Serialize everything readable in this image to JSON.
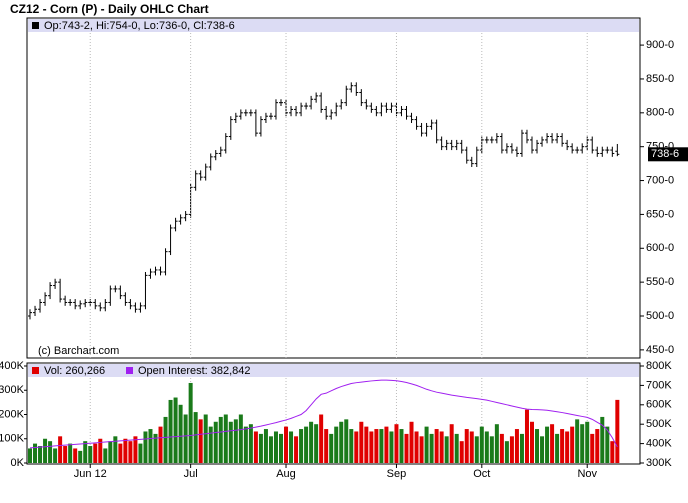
{
  "chart_data": [
    {
      "type": "ohlc",
      "title": "CZ12 - Corn (P) - Daily OHLC Chart",
      "legend_label": "Op:743-2, Hi:754-0, Lo:736-0, Cl:738-6",
      "last_price_label": "738-6",
      "annotation": "(c) Barchart.com",
      "color": "#000000",
      "open": [
        500,
        505,
        510,
        520,
        530,
        545,
        550,
        525,
        520,
        520,
        515,
        518,
        520,
        520,
        515,
        512,
        520,
        540,
        540,
        530,
        520,
        515,
        510,
        515,
        560,
        565,
        568,
        565,
        595,
        630,
        640,
        645,
        650,
        690,
        710,
        705,
        720,
        735,
        740,
        745,
        765,
        790,
        795,
        800,
        800,
        800,
        770,
        790,
        795,
        795,
        815,
        815,
        800,
        805,
        800,
        810,
        810,
        820,
        825,
        805,
        795,
        800,
        810,
        815,
        835,
        840,
        830,
        815,
        810,
        805,
        800,
        810,
        805,
        810,
        800,
        805,
        795,
        790,
        780,
        770,
        780,
        785,
        760,
        750,
        755,
        750,
        755,
        745,
        730,
        725,
        745,
        760,
        760,
        760,
        765,
        745,
        750,
        745,
        740,
        770,
        760,
        745,
        755,
        760,
        765,
        760,
        765,
        755,
        750,
        745,
        745,
        750,
        760,
        745,
        740,
        745,
        745,
        743.25
      ],
      "high": [
        510,
        515,
        525,
        535,
        550,
        555,
        555,
        530,
        525,
        525,
        523,
        525,
        525,
        525,
        520,
        525,
        545,
        545,
        545,
        535,
        525,
        520,
        520,
        565,
        570,
        573,
        573,
        600,
        635,
        645,
        650,
        655,
        695,
        715,
        715,
        725,
        740,
        745,
        750,
        770,
        795,
        800,
        805,
        805,
        805,
        805,
        795,
        800,
        800,
        820,
        820,
        820,
        810,
        810,
        815,
        815,
        825,
        830,
        830,
        810,
        805,
        815,
        820,
        840,
        845,
        845,
        835,
        820,
        815,
        810,
        815,
        815,
        815,
        815,
        810,
        810,
        800,
        795,
        785,
        785,
        790,
        790,
        765,
        760,
        760,
        760,
        760,
        750,
        735,
        750,
        765,
        765,
        765,
        770,
        770,
        755,
        755,
        750,
        775,
        775,
        765,
        760,
        765,
        770,
        770,
        770,
        770,
        760,
        755,
        750,
        755,
        765,
        765,
        750,
        750,
        750,
        750,
        754
      ],
      "low": [
        495,
        500,
        505,
        515,
        525,
        540,
        520,
        515,
        515,
        510,
        510,
        513,
        515,
        510,
        507,
        507,
        515,
        535,
        525,
        515,
        510,
        505,
        505,
        510,
        555,
        560,
        560,
        560,
        590,
        625,
        635,
        640,
        645,
        685,
        700,
        700,
        715,
        730,
        735,
        740,
        760,
        785,
        790,
        795,
        795,
        765,
        765,
        785,
        790,
        790,
        810,
        795,
        795,
        795,
        795,
        805,
        805,
        815,
        800,
        790,
        790,
        795,
        805,
        810,
        830,
        825,
        810,
        805,
        800,
        795,
        795,
        800,
        800,
        795,
        795,
        790,
        785,
        775,
        765,
        765,
        775,
        755,
        745,
        745,
        745,
        745,
        740,
        725,
        720,
        720,
        740,
        755,
        755,
        755,
        740,
        740,
        740,
        735,
        735,
        755,
        740,
        740,
        750,
        755,
        755,
        755,
        750,
        745,
        740,
        740,
        740,
        745,
        740,
        735,
        735,
        740,
        735,
        736
      ],
      "close": [
        505,
        510,
        520,
        530,
        545,
        550,
        525,
        520,
        520,
        515,
        518,
        520,
        520,
        515,
        512,
        520,
        540,
        540,
        530,
        520,
        515,
        510,
        515,
        560,
        565,
        568,
        565,
        595,
        630,
        640,
        645,
        650,
        690,
        710,
        705,
        720,
        735,
        740,
        745,
        765,
        790,
        795,
        800,
        800,
        800,
        770,
        790,
        795,
        795,
        815,
        815,
        800,
        805,
        800,
        810,
        810,
        820,
        825,
        805,
        795,
        800,
        810,
        815,
        835,
        840,
        830,
        815,
        810,
        805,
        800,
        810,
        805,
        810,
        800,
        805,
        795,
        790,
        780,
        770,
        780,
        785,
        760,
        750,
        755,
        750,
        755,
        745,
        730,
        725,
        745,
        760,
        760,
        760,
        765,
        745,
        750,
        745,
        740,
        770,
        760,
        745,
        755,
        760,
        765,
        760,
        765,
        755,
        750,
        745,
        745,
        750,
        760,
        745,
        740,
        745,
        745,
        740,
        738.75
      ],
      "ylim": [
        438,
        940
      ],
      "yticks": [
        {
          "value": 450,
          "label": "450-0"
        },
        {
          "value": 500,
          "label": "500-0"
        },
        {
          "value": 550,
          "label": "550-0"
        },
        {
          "value": 600,
          "label": "600-0"
        },
        {
          "value": 650,
          "label": "650-0"
        },
        {
          "value": 700,
          "label": "700-0"
        },
        {
          "value": 750,
          "label": "750-0"
        },
        {
          "value": 800,
          "label": "800-0"
        },
        {
          "value": 850,
          "label": "850-0"
        },
        {
          "value": 900,
          "label": "900-0"
        }
      ]
    },
    {
      "type": "volume",
      "categories": [
        null,
        null,
        null,
        null,
        null,
        null,
        null,
        null,
        null,
        null,
        null,
        null,
        "Jun 12",
        null,
        null,
        null,
        null,
        null,
        null,
        null,
        null,
        null,
        null,
        null,
        null,
        null,
        null,
        null,
        null,
        null,
        null,
        null,
        "Jul",
        null,
        null,
        null,
        null,
        null,
        null,
        null,
        null,
        null,
        null,
        null,
        null,
        null,
        null,
        null,
        null,
        null,
        null,
        "Aug",
        null,
        null,
        null,
        null,
        null,
        null,
        null,
        null,
        null,
        null,
        null,
        null,
        null,
        null,
        null,
        null,
        null,
        null,
        null,
        null,
        null,
        "Sep",
        null,
        null,
        null,
        null,
        null,
        null,
        null,
        null,
        null,
        null,
        null,
        null,
        null,
        null,
        null,
        null,
        "Oct",
        null,
        null,
        null,
        null,
        null,
        null,
        null,
        null,
        null,
        null,
        null,
        null,
        null,
        null,
        null,
        null,
        null,
        null,
        null,
        null,
        "Nov",
        null,
        null,
        null,
        null,
        null,
        null
      ],
      "series": [
        {
          "name": "Vol: 260,266",
          "color": "#e00000",
          "up_color": "#1a7a1a",
          "values": [
            60000,
            80000,
            70000,
            100000,
            90000,
            60000,
            110000,
            70000,
            80000,
            60000,
            50000,
            90000,
            70000,
            80000,
            100000,
            60000,
            90000,
            110000,
            80000,
            100000,
            90000,
            110000,
            80000,
            130000,
            140000,
            120000,
            150000,
            190000,
            260000,
            270000,
            240000,
            200000,
            330000,
            210000,
            180000,
            200000,
            150000,
            170000,
            190000,
            200000,
            170000,
            180000,
            200000,
            150000,
            160000,
            130000,
            120000,
            140000,
            110000,
            130000,
            120000,
            150000,
            130000,
            110000,
            140000,
            150000,
            170000,
            160000,
            200000,
            140000,
            120000,
            150000,
            170000,
            180000,
            140000,
            130000,
            170000,
            150000,
            130000,
            140000,
            140000,
            150000,
            130000,
            160000,
            140000,
            120000,
            170000,
            130000,
            110000,
            150000,
            120000,
            140000,
            130000,
            110000,
            160000,
            120000,
            90000,
            140000,
            130000,
            110000,
            150000,
            130000,
            110000,
            160000,
            120000,
            90000,
            110000,
            140000,
            120000,
            220000,
            170000,
            140000,
            110000,
            150000,
            160000,
            120000,
            140000,
            130000,
            150000,
            180000,
            160000,
            170000,
            120000,
            140000,
            190000,
            150000,
            90000,
            260266
          ]
        },
        {
          "name": "Open Interest: 382,842",
          "color": "#a020f0",
          "axis": "y2",
          "values": [
            378000,
            380000,
            382000,
            384000,
            386000,
            388000,
            390000,
            392000,
            394000,
            396000,
            398000,
            400000,
            402000,
            404000,
            406000,
            408000,
            410000,
            412000,
            414000,
            416000,
            418000,
            420000,
            422000,
            424000,
            426000,
            428000,
            430000,
            432000,
            434000,
            436000,
            438000,
            440000,
            442000,
            445000,
            448000,
            451000,
            454000,
            457000,
            460000,
            463000,
            466000,
            469000,
            472000,
            476000,
            480000,
            485000,
            490000,
            496000,
            502000,
            508000,
            515000,
            522000,
            530000,
            540000,
            550000,
            570000,
            600000,
            630000,
            654000,
            660000,
            672000,
            684000,
            694000,
            702000,
            710000,
            714000,
            717000,
            720000,
            723000,
            725000,
            727000,
            727000,
            726000,
            724000,
            720000,
            715000,
            708000,
            700000,
            690000,
            680000,
            672000,
            665000,
            660000,
            655000,
            650000,
            646000,
            642000,
            638000,
            635000,
            632000,
            628000,
            624000,
            618000,
            612000,
            606000,
            600000,
            594000,
            588000,
            582000,
            578000,
            576000,
            575000,
            574000,
            572000,
            568000,
            564000,
            560000,
            555000,
            550000,
            545000,
            540000,
            535000,
            525000,
            510000,
            495000,
            470000,
            430000,
            382842
          ]
        }
      ],
      "ylim": [
        0,
        400000
      ],
      "yticks": [
        {
          "value": 0,
          "label": "0K"
        },
        {
          "value": 100000,
          "label": "100K"
        },
        {
          "value": 200000,
          "label": "200K"
        },
        {
          "value": 300000,
          "label": "300K"
        },
        {
          "value": 400000,
          "label": "400K"
        }
      ],
      "y2lim": [
        300000,
        800000
      ],
      "y2ticks": [
        {
          "value": 300000,
          "label": "300K"
        },
        {
          "value": 400000,
          "label": "400K"
        },
        {
          "value": 500000,
          "label": "500K"
        },
        {
          "value": 600000,
          "label": "600K"
        },
        {
          "value": 700000,
          "label": "700K"
        },
        {
          "value": 800000,
          "label": "800K"
        }
      ]
    }
  ]
}
